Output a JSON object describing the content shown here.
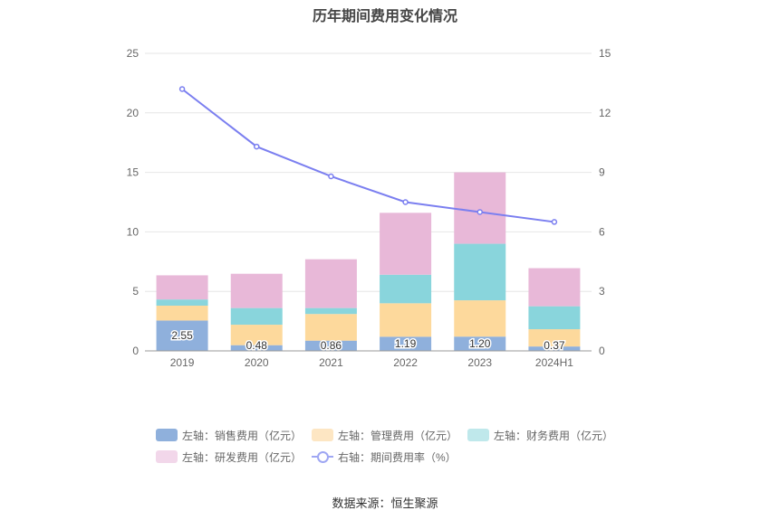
{
  "chart_data": {
    "type": "bar",
    "title": "历年期间费用变化情况",
    "categories": [
      "2019",
      "2020",
      "2021",
      "2022",
      "2023",
      "2024H1"
    ],
    "left_axis": {
      "ylim": [
        0,
        25
      ],
      "ticks": [
        "0",
        "5",
        "10",
        "15",
        "20",
        "25"
      ]
    },
    "right_axis": {
      "ylim": [
        0,
        15
      ],
      "ticks": [
        "0",
        "3",
        "6",
        "9",
        "12",
        "15"
      ]
    },
    "series": [
      {
        "name": "左轴：销售费用（亿元）",
        "type": "stacked-bar",
        "axis": "left",
        "color": "#8fb0dc",
        "values": [
          2.55,
          0.48,
          0.86,
          1.19,
          1.2,
          0.37
        ],
        "labels": [
          "2.55",
          "0.48",
          "0.86",
          "1.19",
          "1.20",
          "0.37"
        ]
      },
      {
        "name": "左轴：管理费用（亿元）",
        "type": "stacked-bar",
        "axis": "left",
        "color": "#fdd99c",
        "values": [
          1.25,
          1.72,
          2.24,
          2.81,
          3.05,
          1.45
        ]
      },
      {
        "name": "左轴：财务费用（亿元）",
        "type": "stacked-bar",
        "axis": "left",
        "color": "#89d5dc",
        "values": [
          0.52,
          1.4,
          0.5,
          2.4,
          4.75,
          1.93
        ]
      },
      {
        "name": "左轴：研发费用（亿元）",
        "type": "stacked-bar",
        "axis": "left",
        "color": "#e8b8d8",
        "values": [
          2.03,
          2.88,
          4.1,
          5.2,
          6.0,
          3.2
        ]
      },
      {
        "name": "右轴：期间费用率（%）",
        "type": "line",
        "axis": "right",
        "color": "#7b7ff0",
        "values": [
          13.2,
          10.3,
          8.8,
          7.5,
          7.0,
          6.5
        ]
      }
    ]
  },
  "legend": [
    {
      "label": "左轴：销售费用（亿元）",
      "color": "#8fb0dc"
    },
    {
      "label": "左轴：管理费用（亿元）",
      "color": "#fde6c3"
    },
    {
      "label": "左轴：财务费用（亿元）",
      "color": "#bfe8eb"
    },
    {
      "label": "左轴：研发费用（亿元）",
      "color": "#f2d7ea"
    },
    {
      "label": "右轴：期间费用率（%）",
      "color": "#9fa7f3"
    }
  ],
  "source": "数据来源：恒生聚源"
}
